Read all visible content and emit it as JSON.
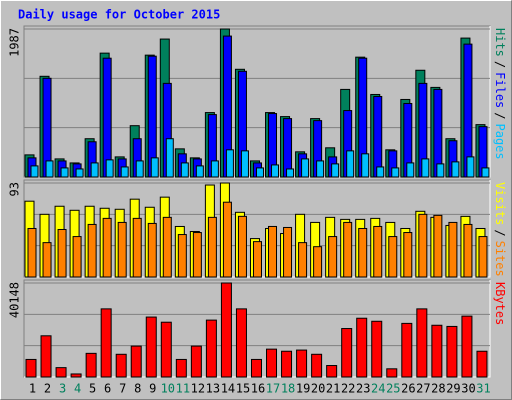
{
  "chart_data": {
    "type": "bar",
    "title": "Daily usage for October 2015",
    "categories": [
      "1",
      "2",
      "3",
      "4",
      "5",
      "6",
      "7",
      "8",
      "9",
      "10",
      "11",
      "12",
      "13",
      "14",
      "15",
      "16",
      "17",
      "18",
      "19",
      "20",
      "21",
      "22",
      "23",
      "24",
      "25",
      "26",
      "27",
      "28",
      "29",
      "30",
      "31"
    ],
    "highlight_indices": [
      2,
      3,
      9,
      10,
      16,
      17,
      23,
      24,
      30
    ],
    "highlight_color": "#00805c",
    "grid": true,
    "legend_separator": "/",
    "panels": [
      {
        "ylim": [
          0,
          1987
        ],
        "yticks": [
          1987
        ],
        "series": [
          {
            "name": "Hits",
            "color": "#00805c",
            "values": [
              297,
              1352,
              243,
              189,
              514,
              1663,
              270,
              689,
              1636,
              1852,
              378,
              257,
              865,
              1987,
              1446,
              216,
              865,
              811,
              338,
              784,
              392,
              1176,
              1609,
              1108,
              365,
              1041,
              1433,
              1203,
              514,
              1865,
              703
            ]
          },
          {
            "name": "Files",
            "color": "#0000ff",
            "values": [
              257,
              1325,
              216,
              176,
              473,
              1595,
              243,
              514,
              1622,
              1257,
              311,
              243,
              838,
              1892,
              1419,
              189,
              852,
              784,
              311,
              757,
              270,
              892,
              1595,
              1081,
              351,
              987,
              1257,
              1176,
              487,
              1784,
              676
            ]
          },
          {
            "name": "Pages",
            "color": "#00c0ff",
            "values": [
              149,
              216,
              122,
              108,
              189,
              230,
              135,
              216,
              257,
              514,
              189,
              149,
              216,
              365,
              351,
              122,
              162,
              108,
              243,
              216,
              176,
              351,
              311,
              135,
              122,
              189,
              243,
              176,
              203,
              270,
              122
            ]
          }
        ]
      },
      {
        "ylim": [
          0,
          93
        ],
        "yticks": [
          93
        ],
        "series": [
          {
            "name": "Visits",
            "color": "#ffff00",
            "values": [
              75,
              62,
              70,
              66,
              70,
              68,
              67,
              77,
              69,
              79,
              50,
              45,
              91,
              93,
              64,
              38,
              48,
              43,
              62,
              54,
              59,
              57,
              57,
              58,
              54,
              48,
              65,
              59,
              51,
              60,
              48
            ]
          },
          {
            "name": "Sites",
            "color": "#ff8000",
            "values": [
              48,
              34,
              47,
              40,
              52,
              58,
              54,
              58,
              53,
              59,
              42,
              44,
              59,
              74,
              60,
              35,
              50,
              49,
              34,
              30,
              40,
              54,
              48,
              50,
              40,
              44,
              62,
              61,
              54,
              52,
              40
            ]
          }
        ]
      },
      {
        "ylim": [
          0,
          40148
        ],
        "yticks": [
          40148
        ],
        "series": [
          {
            "name": "KBytes",
            "color": "#ff0000",
            "values": [
              7500,
              17600,
              4000,
              1300,
              10100,
              29100,
              9700,
              13200,
              25600,
              23400,
              7500,
              13200,
              24300,
              40148,
              29100,
              7500,
              11900,
              11000,
              11500,
              9700,
              4900,
              20700,
              25100,
              23800,
              3500,
              22900,
              29100,
              22100,
              21600,
              26000,
              11000
            ]
          }
        ]
      }
    ]
  }
}
